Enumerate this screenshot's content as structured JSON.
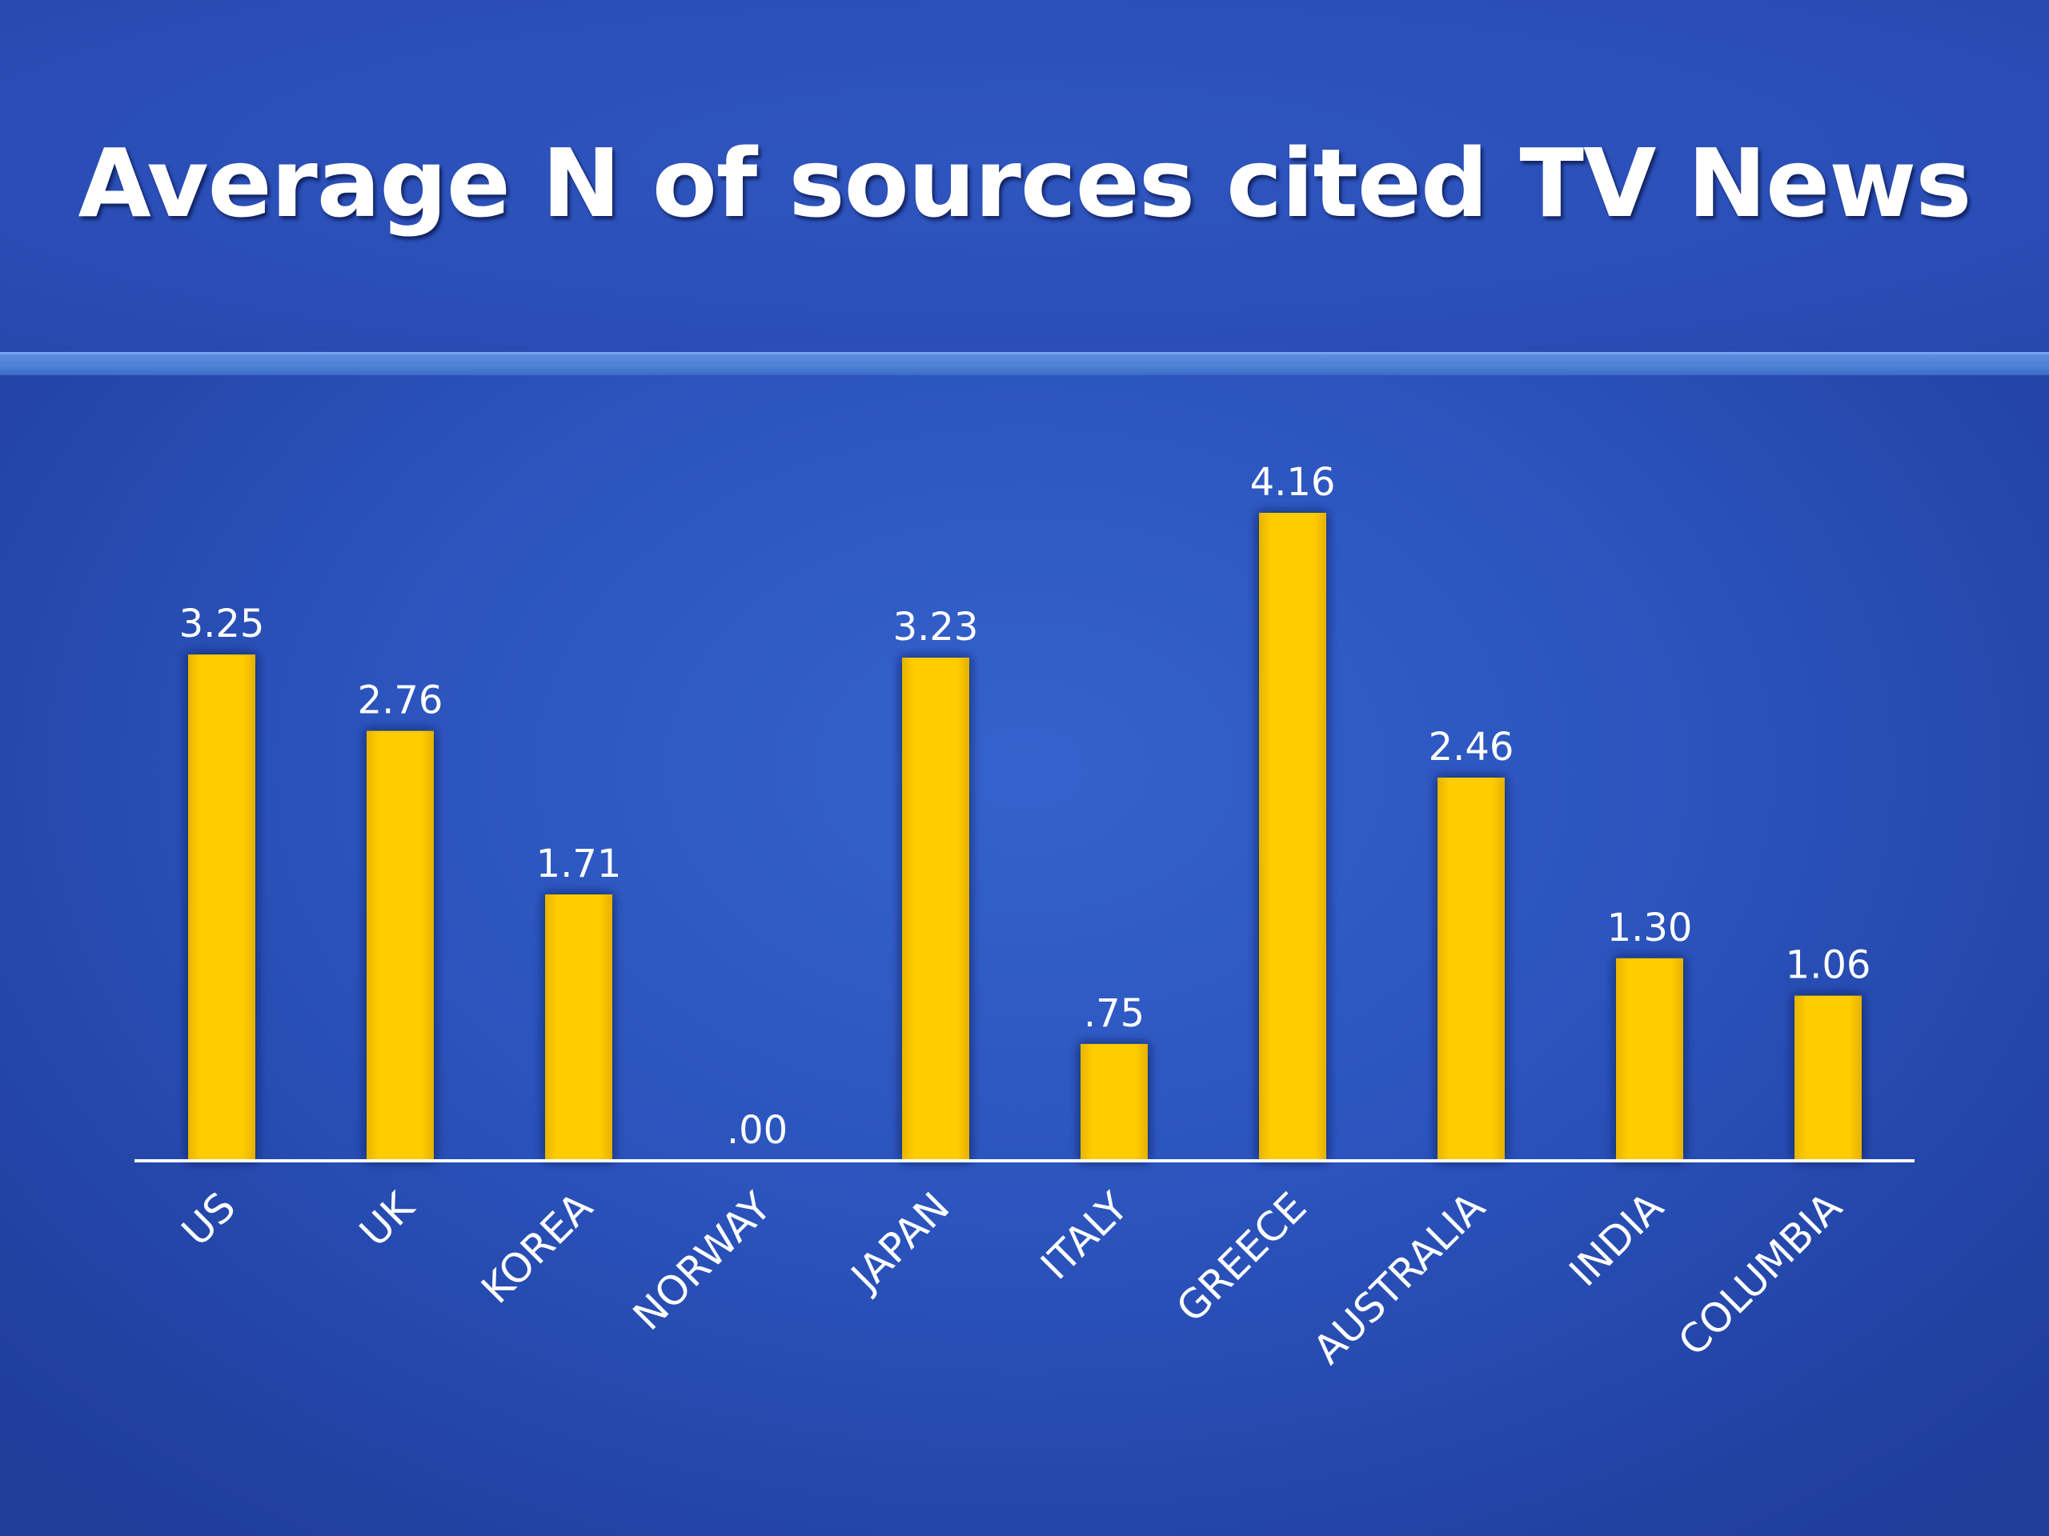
{
  "chart_data": {
    "type": "bar",
    "title": "Average N of sources cited TV News",
    "categories": [
      "US",
      "UK",
      "KOREA",
      "NORWAY",
      "JAPAN",
      "ITALY",
      "GREECE",
      "AUSTRALIA",
      "INDIA",
      "COLUMBIA"
    ],
    "values": [
      3.25,
      2.76,
      1.71,
      0.0,
      3.23,
      0.75,
      4.16,
      2.46,
      1.3,
      1.06
    ],
    "value_labels": [
      "3.25",
      "2.76",
      "1.71",
      ".00",
      "3.23",
      ".75",
      "4.16",
      "2.46",
      "1.30",
      "1.06"
    ],
    "xlabel": "",
    "ylabel": "",
    "ylim": [
      0,
      4.16
    ],
    "grid": false,
    "legend": "none",
    "bar_color": "#ffcc00",
    "background_color": "#2b54bd",
    "text_color": "#ffffff"
  }
}
